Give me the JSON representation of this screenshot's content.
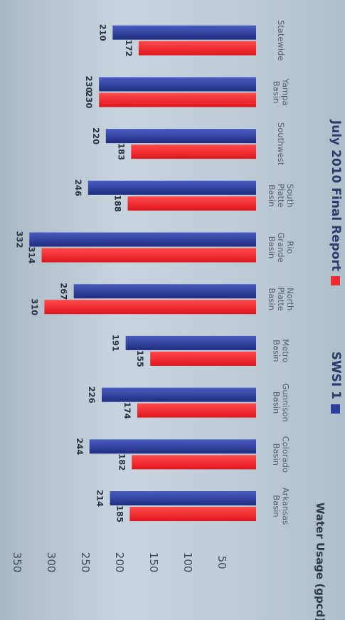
{
  "chart_data": {
    "type": "bar",
    "orientation": "horizontal",
    "title": "",
    "xlabel": "",
    "ylabel": "Water Usage (gpcd)",
    "ylim": [
      0,
      350
    ],
    "ticks": [
      50,
      100,
      150,
      200,
      250,
      300,
      350
    ],
    "categories": [
      "Arkansas Basin",
      "Colorado Basin",
      "Gunnison Basin",
      "Metro Basin",
      "North Platte Basin",
      "Rio Grande Basin",
      "South Platte Basin",
      "Southwest",
      "Yampa Basin",
      "Statewide"
    ],
    "series": [
      {
        "name": "SWSI 1",
        "color": "#2c3d9c",
        "values": [
          214,
          244,
          226,
          191,
          267,
          332,
          246,
          220,
          230,
          210
        ]
      },
      {
        "name": "July 2010 Final Report",
        "color": "#ee2a2f",
        "values": [
          185,
          182,
          174,
          155,
          310,
          314,
          188,
          183,
          230,
          172
        ]
      }
    ],
    "grid": false,
    "legend": "bottom"
  }
}
